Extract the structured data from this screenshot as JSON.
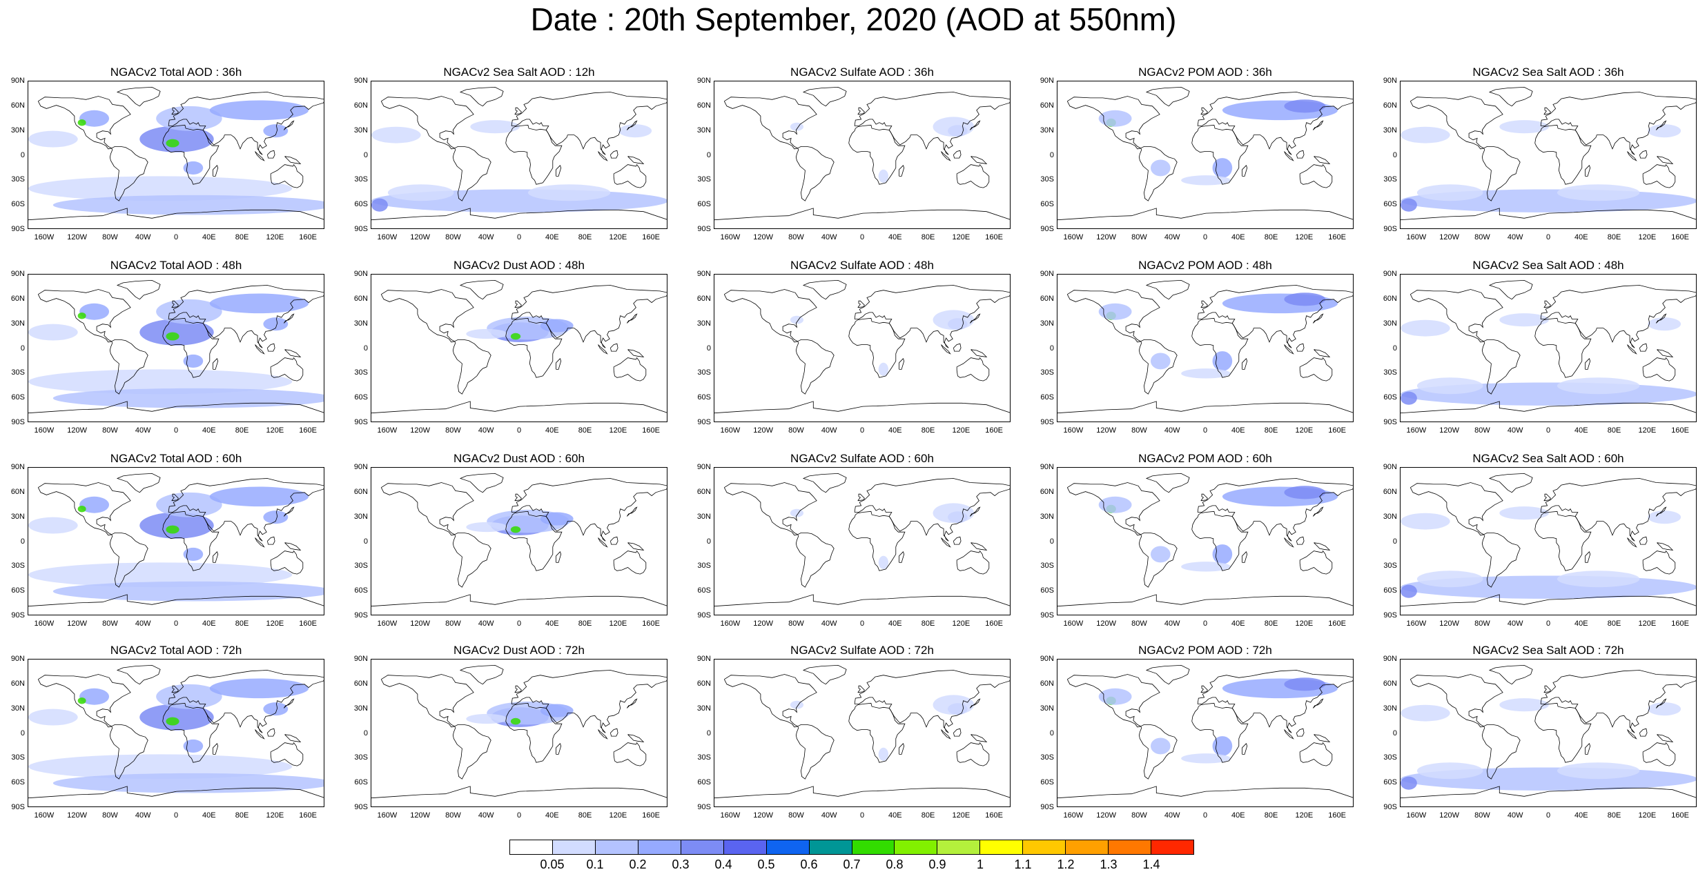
{
  "title": "Date : 20th September, 2020 (AOD at 550nm)",
  "lat_labels": [
    "90N",
    "60N",
    "30N",
    "0",
    "30S",
    "60S",
    "90S"
  ],
  "lon_labels": [
    "160W",
    "120W",
    "80W",
    "40W",
    "0",
    "40E",
    "80E",
    "120E",
    "160E"
  ],
  "panels": [
    [
      "NGACv2 Total AOD : 36h",
      "NGACv2 Sea Salt  AOD : 12h",
      "NGACv2 Sulfate AOD : 36h",
      "NGACv2 POM AOD : 36h",
      "NGACv2 Sea Salt  AOD : 36h"
    ],
    [
      "NGACv2 Total AOD : 48h",
      "NGACv2 Dust AOD : 48h",
      "NGACv2 Sulfate AOD : 48h",
      "NGACv2 POM AOD : 48h",
      "NGACv2 Sea Salt  AOD : 48h"
    ],
    [
      "NGACv2 Total AOD : 60h",
      "NGACv2 Dust AOD : 60h",
      "NGACv2 Sulfate AOD : 60h",
      "NGACv2 POM AOD : 60h",
      "NGACv2 Sea Salt  AOD : 60h"
    ],
    [
      "NGACv2 Total AOD : 72h",
      "NGACv2 Dust AOD : 72h",
      "NGACv2 Sulfate AOD : 72h",
      "NGACv2 POM AOD : 72h",
      "NGACv2 Sea Salt  AOD : 72h"
    ]
  ],
  "colorbar": {
    "labels": [
      "0.05",
      "0.1",
      "0.2",
      "0.3",
      "0.4",
      "0.5",
      "0.6",
      "0.7",
      "0.8",
      "0.9",
      "1",
      "1.1",
      "1.2",
      "1.3",
      "1.4"
    ],
    "colors": [
      "#ffffff",
      "#d2dcff",
      "#b4c3ff",
      "#96aaff",
      "#7d8cf5",
      "#5a64f0",
      "#0f64f0",
      "#009696",
      "#32dc00",
      "#82f000",
      "#b4f03c",
      "#ffff00",
      "#ffc800",
      "#ffa000",
      "#ff7800",
      "#ff2800"
    ]
  }
}
